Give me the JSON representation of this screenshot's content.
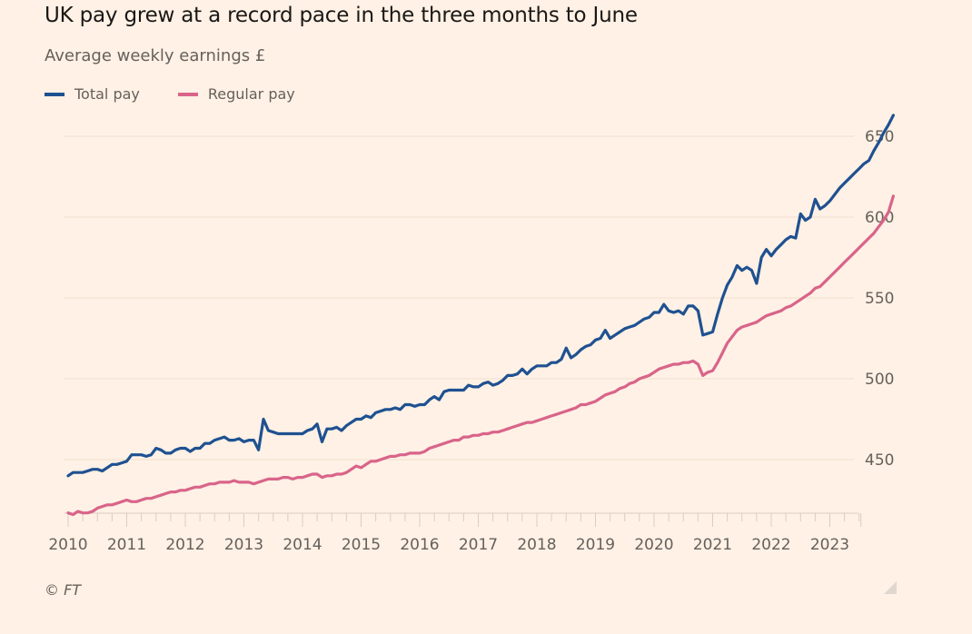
{
  "title": "UK pay grew at a record pace in the three months to June",
  "subtitle": "Average weekly earnings £",
  "source": "© FT",
  "colors": {
    "background": "#fff1e5",
    "total_pay": "#1f5191",
    "regular_pay": "#d9648a"
  },
  "legend": [
    {
      "label": "Total pay",
      "color": "#1f5191"
    },
    {
      "label": "Regular pay",
      "color": "#d9648a"
    }
  ],
  "chart_data": {
    "type": "line",
    "title": "UK pay grew at a record pace in the three months to June",
    "subtitle": "Average weekly earnings £",
    "xlabel": "",
    "ylabel": "Average weekly earnings £",
    "x_start": "2010-01",
    "x_end": "2023-06",
    "x_frequency": "monthly",
    "xlim": [
      2010.0,
      2023.5
    ],
    "ylim": [
      415,
      665
    ],
    "y_ticks": [
      450,
      500,
      550,
      600,
      650
    ],
    "y_tick_labels": [
      "450",
      "500",
      "550",
      "600",
      "650"
    ],
    "x_ticks": [
      2010,
      2011,
      2012,
      2013,
      2014,
      2015,
      2016,
      2017,
      2018,
      2019,
      2020,
      2021,
      2022,
      2023
    ],
    "x_tick_labels": [
      "2010",
      "2011",
      "2012",
      "2013",
      "2014",
      "2015",
      "2016",
      "2017",
      "2018",
      "2019",
      "2020",
      "2021",
      "2022",
      "2023"
    ],
    "y_axis_side": "right",
    "grid": true,
    "legend_position": "top-left",
    "series": [
      {
        "name": "Total pay",
        "color": "#1f5191",
        "values": [
          440,
          442,
          442,
          442,
          443,
          444,
          444,
          443,
          445,
          447,
          447,
          448,
          449,
          453,
          453,
          453,
          452,
          453,
          457,
          456,
          454,
          454,
          456,
          457,
          457,
          455,
          457,
          457,
          460,
          460,
          462,
          463,
          464,
          462,
          462,
          463,
          461,
          462,
          462,
          456,
          475,
          468,
          467,
          466,
          466,
          466,
          466,
          466,
          466,
          468,
          469,
          472,
          461,
          469,
          469,
          470,
          468,
          471,
          473,
          475,
          475,
          477,
          476,
          479,
          480,
          481,
          481,
          482,
          481,
          484,
          484,
          483,
          484,
          484,
          487,
          489,
          487,
          492,
          493,
          493,
          493,
          493,
          496,
          495,
          495,
          497,
          498,
          496,
          497,
          499,
          502,
          502,
          503,
          506,
          503,
          506,
          508,
          508,
          508,
          510,
          510,
          512,
          519,
          513,
          515,
          518,
          520,
          521,
          524,
          525,
          530,
          525,
          527,
          529,
          531,
          532,
          533,
          535,
          537,
          538,
          541,
          541,
          546,
          542,
          541,
          542,
          540,
          545,
          545,
          542,
          527,
          528,
          529,
          540,
          550,
          558,
          563,
          570,
          567,
          569,
          567,
          559,
          575,
          580,
          576,
          580,
          583,
          586,
          588,
          587,
          602,
          598,
          600,
          611,
          605,
          607,
          610,
          614,
          618,
          621,
          624,
          627,
          630,
          633,
          635,
          641,
          646,
          652,
          657,
          663
        ]
      },
      {
        "name": "Regular pay",
        "color": "#d9648a",
        "values": [
          417,
          416,
          418,
          417,
          417,
          418,
          420,
          421,
          422,
          422,
          423,
          424,
          425,
          424,
          424,
          425,
          426,
          426,
          427,
          428,
          429,
          430,
          430,
          431,
          431,
          432,
          433,
          433,
          434,
          435,
          435,
          436,
          436,
          436,
          437,
          436,
          436,
          436,
          435,
          436,
          437,
          438,
          438,
          438,
          439,
          439,
          438,
          439,
          439,
          440,
          441,
          441,
          439,
          440,
          440,
          441,
          441,
          442,
          444,
          446,
          445,
          447,
          449,
          449,
          450,
          451,
          452,
          452,
          453,
          453,
          454,
          454,
          454,
          455,
          457,
          458,
          459,
          460,
          461,
          462,
          462,
          464,
          464,
          465,
          465,
          466,
          466,
          467,
          467,
          468,
          469,
          470,
          471,
          472,
          473,
          473,
          474,
          475,
          476,
          477,
          478,
          479,
          480,
          481,
          482,
          484,
          484,
          485,
          486,
          488,
          490,
          491,
          492,
          494,
          495,
          497,
          498,
          500,
          501,
          502,
          504,
          506,
          507,
          508,
          509,
          509,
          510,
          510,
          511,
          509,
          502,
          504,
          505,
          510,
          516,
          522,
          526,
          530,
          532,
          533,
          534,
          535,
          537,
          539,
          540,
          541,
          542,
          544,
          545,
          547,
          549,
          551,
          553,
          556,
          557,
          560,
          563,
          566,
          569,
          572,
          575,
          578,
          581,
          584,
          587,
          590,
          594,
          598,
          603,
          613
        ]
      }
    ]
  }
}
